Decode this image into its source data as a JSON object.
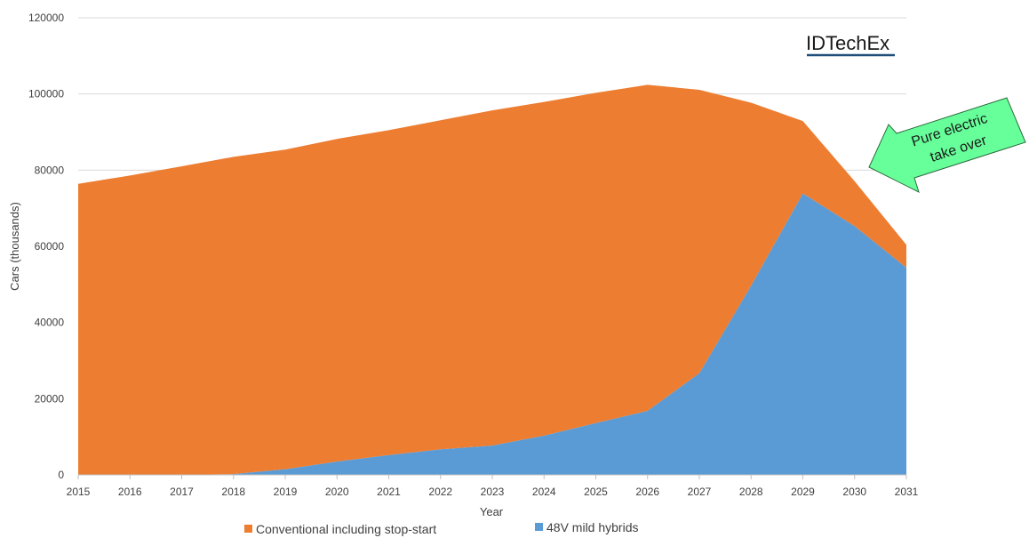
{
  "brand": {
    "name": "IDTechEx",
    "underline_color": "#1f4e79"
  },
  "callout": {
    "line1": "Pure electric",
    "line2": "take over",
    "fill": "#66ff99",
    "stroke": "#2e6b3f"
  },
  "colors": {
    "conventional": "#ed7d31",
    "mild_hybrid": "#5b9bd5",
    "grid": "#d9d9d9",
    "axis": "#bfbfbf"
  },
  "chart_data": {
    "type": "area",
    "stacked": true,
    "title": "",
    "xlabel": "Year",
    "ylabel": "Cars (thousands)",
    "x": [
      2015,
      2016,
      2017,
      2018,
      2019,
      2020,
      2021,
      2022,
      2023,
      2024,
      2025,
      2026,
      2027,
      2028,
      2029,
      2030,
      2031
    ],
    "ylim": [
      0,
      120000
    ],
    "yticks": [
      0,
      20000,
      40000,
      60000,
      80000,
      100000,
      120000
    ],
    "grid": true,
    "legend_position": "bottom",
    "series": [
      {
        "name": "48V mild hybrids",
        "color": "#5b9bd5",
        "values": [
          0,
          0,
          0,
          200,
          1500,
          3500,
          5200,
          6700,
          7700,
          10300,
          13600,
          16800,
          26700,
          49700,
          73900,
          65300,
          54400
        ]
      },
      {
        "name": "Conventional including stop-start",
        "color": "#ed7d31",
        "values": [
          76400,
          78600,
          81000,
          83300,
          83900,
          84700,
          85300,
          86400,
          88000,
          87600,
          86700,
          85600,
          74400,
          48000,
          19000,
          11800,
          6000
        ]
      }
    ]
  }
}
